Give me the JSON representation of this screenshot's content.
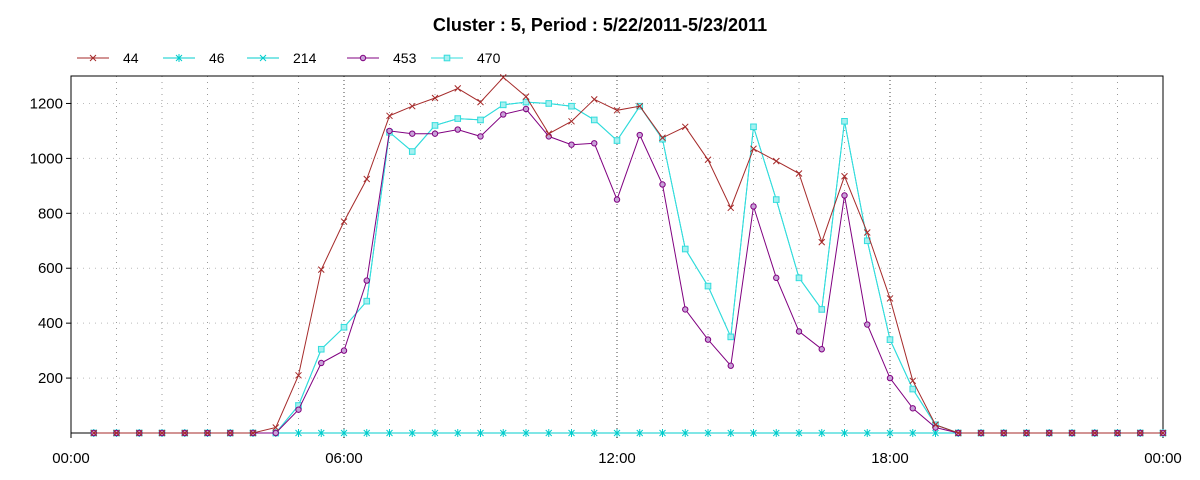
{
  "chart_data": {
    "type": "line",
    "title": "Cluster : 5, Period : 5/22/2011-5/23/2011",
    "xlabel": "",
    "ylabel": "",
    "x_range_hours": [
      0,
      24
    ],
    "ylim": [
      0,
      1300
    ],
    "x_tick_labels": [
      "00:00",
      "06:00",
      "12:00",
      "18:00",
      "00:00"
    ],
    "y_ticks": [
      200,
      400,
      600,
      800,
      1000,
      1200
    ],
    "grid": true,
    "legend_position": "top-left",
    "x_hours": [
      0.5,
      1,
      1.5,
      2,
      2.5,
      3,
      3.5,
      4,
      4.5,
      5,
      5.5,
      6,
      6.5,
      7,
      7.5,
      8,
      8.5,
      9,
      9.5,
      10,
      10.5,
      11,
      11.5,
      12,
      12.5,
      13,
      13.5,
      14,
      14.5,
      15,
      15.5,
      16,
      16.5,
      17,
      17.5,
      18,
      18.5,
      19,
      19.5,
      20,
      20.5,
      21,
      21.5,
      22,
      22.5,
      23,
      23.5,
      24
    ],
    "series": [
      {
        "name": "44",
        "color": "#a52a2a",
        "marker": "x",
        "values": [
          0,
          0,
          0,
          0,
          0,
          0,
          0,
          0,
          20,
          210,
          595,
          770,
          925,
          1155,
          1190,
          1220,
          1255,
          1205,
          1295,
          1225,
          1090,
          1135,
          1215,
          1175,
          1190,
          1075,
          1115,
          995,
          820,
          1035,
          990,
          945,
          695,
          935,
          730,
          490,
          190,
          30,
          0,
          0,
          0,
          0,
          0,
          0,
          0,
          0,
          0,
          0
        ]
      },
      {
        "name": "46",
        "color": "#00cccc",
        "marker": "asterisk",
        "values": [
          0,
          0,
          0,
          0,
          0,
          0,
          0,
          0,
          0,
          0,
          0,
          0,
          0,
          0,
          0,
          0,
          0,
          0,
          0,
          0,
          0,
          0,
          0,
          0,
          0,
          0,
          0,
          0,
          0,
          0,
          0,
          0,
          0,
          0,
          0,
          0,
          0,
          0,
          0,
          0,
          0,
          0,
          0,
          0,
          0,
          0,
          0,
          0
        ]
      },
      {
        "name": "214",
        "color": "#00cccc",
        "marker": "x",
        "values": [
          0,
          0,
          0,
          0,
          0,
          0,
          0,
          0,
          0,
          100,
          305,
          385,
          480,
          1095,
          1025,
          1120,
          1145,
          1140,
          1195,
          1205,
          1200,
          1190,
          1140,
          1065,
          1190,
          1070,
          670,
          535,
          350,
          1115,
          850,
          565,
          450,
          1135,
          700,
          340,
          160,
          30,
          0,
          0,
          0,
          0,
          0,
          0,
          0,
          0,
          0,
          0
        ]
      },
      {
        "name": "453",
        "color": "#800080",
        "marker": "circle",
        "values": [
          0,
          0,
          0,
          0,
          0,
          0,
          0,
          0,
          0,
          85,
          255,
          300,
          555,
          1100,
          1090,
          1090,
          1105,
          1080,
          1160,
          1180,
          1080,
          1050,
          1055,
          850,
          1085,
          905,
          450,
          340,
          245,
          825,
          565,
          370,
          305,
          865,
          395,
          200,
          90,
          20,
          0,
          0,
          0,
          0,
          0,
          0,
          0,
          0,
          0,
          0
        ]
      },
      {
        "name": "470",
        "color": "#33dddd",
        "marker": "square",
        "values": [
          0,
          0,
          0,
          0,
          0,
          0,
          0,
          0,
          0,
          100,
          305,
          385,
          480,
          1095,
          1025,
          1120,
          1145,
          1140,
          1195,
          1205,
          1200,
          1190,
          1140,
          1065,
          1190,
          1070,
          670,
          535,
          350,
          1115,
          850,
          565,
          450,
          1135,
          700,
          340,
          160,
          30,
          0,
          0,
          0,
          0,
          0,
          0,
          0,
          0,
          0,
          0
        ]
      }
    ]
  }
}
